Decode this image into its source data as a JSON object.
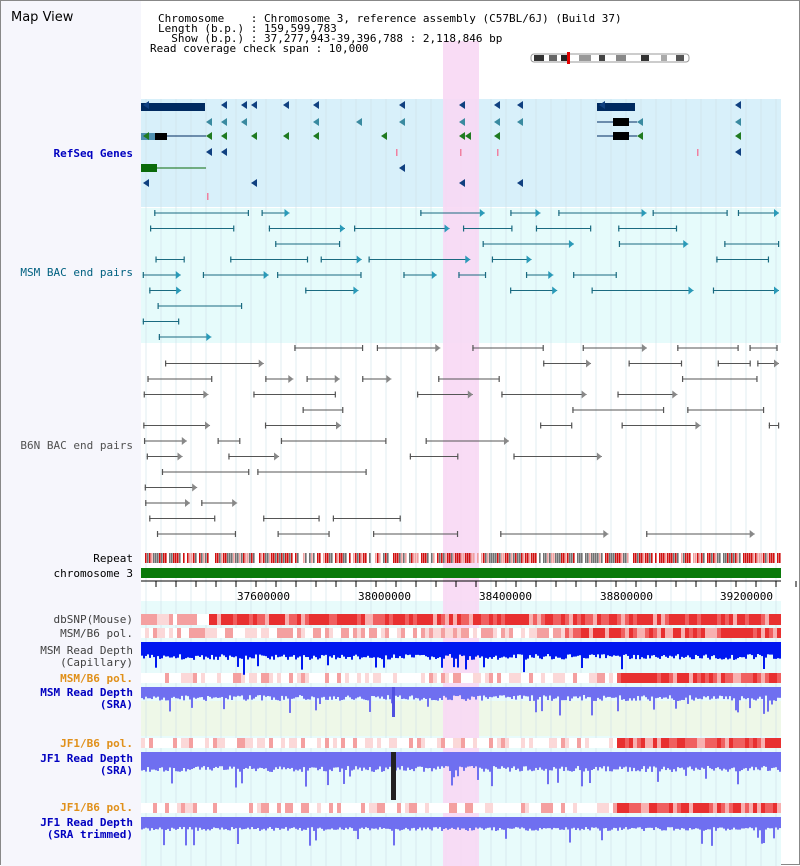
{
  "view": {
    "title": "Map View"
  },
  "header": {
    "chromosome_line": "Chromosome    : Chromosome 3, reference assembly (C57BL/6J) (Build 37)",
    "length_line": "Length (b.p.) : 159,599,783",
    "show_line": "  Show (b.p.) : 37,277,943-39,396,788 : 2,118,846 bp",
    "coverage_line": "Read coverage check span : 10,000"
  },
  "tracks": {
    "refseq": "RefSeq Genes",
    "msm_bac": "MSM BAC end pairs",
    "b6n_bac": "B6N BAC end pairs",
    "repeat": "Repeat",
    "chromosome": "chromosome 3",
    "dbsnp": "dbSNP(Mouse)",
    "msm_b6_pol_top": "MSM/B6 pol.",
    "msm_depth_cap_1": "MSM Read Depth",
    "msm_depth_cap_2": "(Capillary)",
    "msm_b6_pol": "MSM/B6 pol.",
    "msm_depth_sra_1": "MSM Read Depth",
    "msm_depth_sra_2": "(SRA)",
    "jf1_b6_pol_1": "JF1/B6 pol.",
    "jf1_depth_sra_1": "JF1 Read Depth",
    "jf1_depth_sra_2": "(SRA)",
    "jf1_b6_pol_2": "JF1/B6 pol.",
    "jf1_depth_trim_1": "JF1 Read Depth",
    "jf1_depth_trim_2": "(SRA trimmed)"
  },
  "axis": {
    "ticks": [
      "37600000",
      "38000000",
      "38400000",
      "38800000",
      "39200000"
    ]
  },
  "colors": {
    "refseq_bg": "#d8f0fa",
    "bac_bg": "#e6fbfb",
    "highlight": "#f8d8f4",
    "chromosome": "#0a7a0a",
    "depth_cap": "#0018f0",
    "depth_sra": "#6f6ff0",
    "snp": "#e83030"
  }
}
